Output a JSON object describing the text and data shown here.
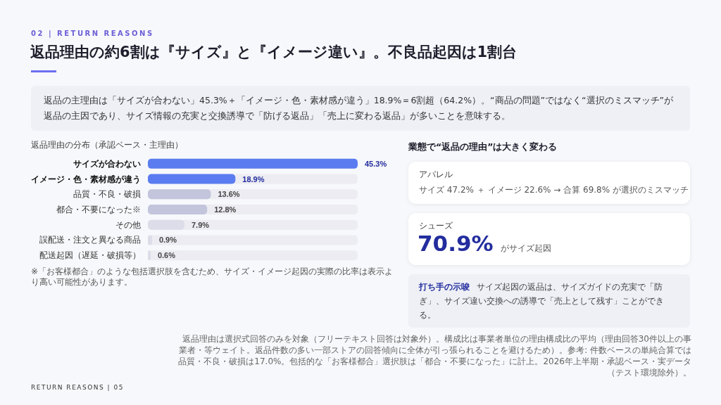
{
  "chart_data": {
    "type": "bar",
    "orientation": "horizontal",
    "title": "返品理由の約6割は『サイズ』と『イメージ違い』。不良品起因は1割台",
    "subtitle": "返品理由の分布（承認ベース・主理由）",
    "categories": [
      "サイズが合わない",
      "イメージ・色・素材感が違う",
      "品質・不良・破損",
      "都合・不要になった※",
      "その他",
      "誤配送・注文と異なる商品",
      "配送起因（遅延・破損等）"
    ],
    "values": [
      45.3,
      18.9,
      13.6,
      12.8,
      7.9,
      0.9,
      0.6
    ],
    "colors": [
      "#5b7cf0",
      "#5b7cf0",
      "#c3c5dc",
      "#c3c5dc",
      "#dcdde8",
      "#dcdde8",
      "#dcdde8"
    ],
    "value_labels": [
      "45.3%",
      "18.9%",
      "13.6%",
      "12.8%",
      "7.9%",
      "0.9%",
      "0.6%"
    ],
    "tick_labels": "y",
    "annotations": [
      "02 | RETURN REASONS",
      "返品の主理由は「サイズが合わない」45.3%＋「イメージ・色・素材感が違う」18.9%＝6割超（64.2%）。“商品の問題”ではなく“選択のミスマッチ”が返品の主因であり、サイズ情報の充実と交換誘導で「防げる返品」「売上に変わる返品」が多いことを意味する。",
      "※「お客様都合」のような包括選択肢を含むため、サイズ・イメージ起因の実際の比率は表示より高い可能性があります。",
      "業態で“返品の理由”は大きく変わる",
      "アパレル",
      "サイズ 47.2% ＋ イメージ 22.6% → 合算 69.8% が選択のミスマッチ",
      "シューズ",
      "70.9%",
      "がサイズ起因",
      "打ち手の示唆",
      "サイズ起因の返品は、サイズガイドの充実で「防ぎ」、サイズ違い交換への誘導で「売上として残す」ことができる。",
      "返品理由は選択式回答のみを対象（フリーテキスト回答は対象外）。構成比は事業者単位の理由構成比の平均（理由回答30件以上の事業者・等ウェイト。返品件数の多い一部ストアの回答傾向に全体が引っ張られることを避けるため）。参考: 件数ベースの単純合算では品質・不良・破損は17.0%。包括的な「お客様都合」選択肢は「都合・不要になった」に計上。2026年上半期・承認ベース・実データ（テスト環境除外）。",
      "RETURN REASONS | 05"
    ]
  }
}
